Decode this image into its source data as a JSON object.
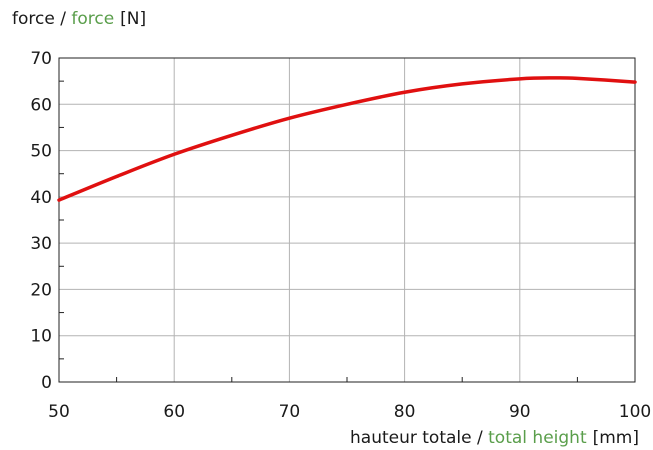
{
  "chart_data": {
    "type": "line",
    "y_axis_label": {
      "fr": "force",
      "sep": " / ",
      "en": "force",
      "unit": "[N]"
    },
    "x_axis_label": {
      "fr": "hauteur totale",
      "sep": " / ",
      "en": "total height",
      "unit": "[mm]"
    },
    "xlim": [
      50,
      100
    ],
    "ylim": [
      0,
      70
    ],
    "x_ticks": [
      50,
      60,
      70,
      80,
      90,
      100
    ],
    "y_ticks": [
      0,
      10,
      20,
      30,
      40,
      50,
      60,
      70
    ],
    "grid": true,
    "series": [
      {
        "color": "#e01010",
        "x": [
          50,
          55,
          60,
          65,
          70,
          75,
          80,
          85,
          90,
          93,
          95,
          100
        ],
        "y": [
          39.3,
          44.4,
          49.2,
          53.3,
          57.0,
          60.0,
          62.6,
          64.4,
          65.5,
          65.7,
          65.6,
          64.8
        ]
      }
    ]
  }
}
